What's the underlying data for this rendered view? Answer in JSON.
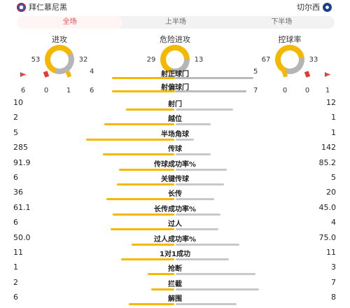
{
  "header": {
    "home_team": "拜仁慕尼黑",
    "away_team": "切尔西"
  },
  "tabs": [
    {
      "label": "全场",
      "active": true
    },
    {
      "label": "上半场",
      "active": false
    },
    {
      "label": "下半场",
      "active": false
    }
  ],
  "metrics": [
    {
      "title": "进攻",
      "home": "53",
      "away": "32",
      "home_share": 0.62
    },
    {
      "title": "危险进攻",
      "home": "29",
      "away": "13",
      "home_share": 0.69
    },
    {
      "title": "控球率",
      "home": "67",
      "away": "33",
      "home_share": 0.67
    }
  ],
  "cards": {
    "home": {
      "red": "0",
      "yellow": "1",
      "corners": "6"
    },
    "away": {
      "red": "0",
      "yellow": "0",
      "corners": "1"
    }
  },
  "shots_on_target": {
    "label": "射正球门",
    "home": "4",
    "away": "5"
  },
  "shots_off_target": {
    "label": "射偏球门",
    "home": "6",
    "away": "7"
  },
  "stats": [
    {
      "label": "射门",
      "home": "10",
      "away": "12",
      "hw": 0.45,
      "aw": 0.54
    },
    {
      "label": "越位",
      "home": "2",
      "away": "1",
      "hw": 0.66,
      "aw": 0.33
    },
    {
      "label": "半场角球",
      "home": "5",
      "away": "1",
      "hw": 0.83,
      "aw": 0.17
    },
    {
      "label": "传球",
      "home": "285",
      "away": "142",
      "hw": 0.67,
      "aw": 0.33
    },
    {
      "label": "传球成功率%",
      "home": "91.9",
      "away": "85.2",
      "hw": 0.52,
      "aw": 0.48
    },
    {
      "label": "关键传球",
      "home": "6",
      "away": "5",
      "hw": 0.54,
      "aw": 0.45
    },
    {
      "label": "长传",
      "home": "36",
      "away": "20",
      "hw": 0.64,
      "aw": 0.36
    },
    {
      "label": "长传成功率%",
      "home": "61.1",
      "away": "45.0",
      "hw": 0.58,
      "aw": 0.42
    },
    {
      "label": "过人",
      "home": "6",
      "away": "4",
      "hw": 0.6,
      "aw": 0.4
    },
    {
      "label": "过人成功率%",
      "home": "50.0",
      "away": "75.0",
      "hw": 0.4,
      "aw": 0.6
    },
    {
      "label": "1对1成功",
      "home": "11",
      "away": "11",
      "hw": 0.5,
      "aw": 0.5
    },
    {
      "label": "抢断",
      "home": "1",
      "away": "3",
      "hw": 0.25,
      "aw": 0.75
    },
    {
      "label": "拦截",
      "home": "2",
      "away": "7",
      "hw": 0.22,
      "aw": 0.78
    },
    {
      "label": "解围",
      "home": "6",
      "away": "8",
      "hw": 0.43,
      "aw": 0.57
    }
  ],
  "colors": {
    "home_bar": "#f5b800",
    "away_bar": "#c8c8c8",
    "accent": "#e8464f"
  }
}
